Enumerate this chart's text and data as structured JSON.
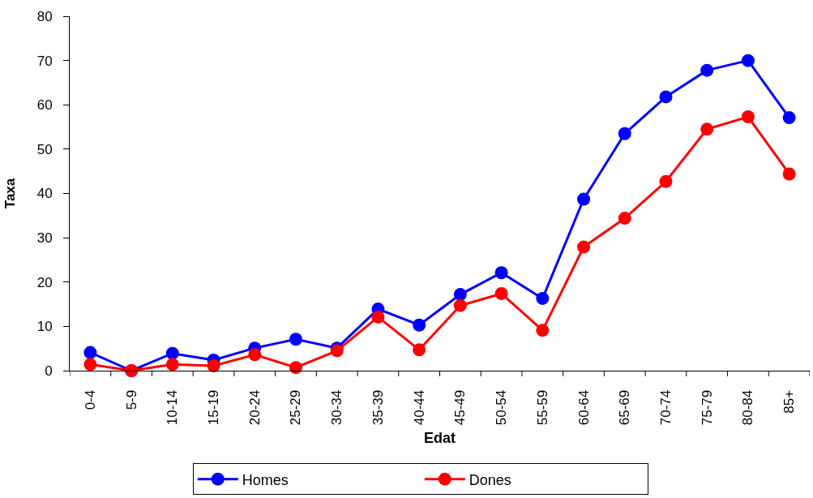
{
  "chart_data": {
    "type": "line",
    "xlabel": "Edat",
    "ylabel": "Taxa",
    "categories": [
      "0-4",
      "5-9",
      "10-14",
      "15-19",
      "20-24",
      "25-29",
      "30-34",
      "35-39",
      "40-44",
      "45-49",
      "50-54",
      "55-59",
      "60-64",
      "65-69",
      "70-74",
      "75-79",
      "80-84",
      "85+"
    ],
    "series": [
      {
        "name": "Homes",
        "color": "#0000ff",
        "values": [
          4.1,
          0,
          3.9,
          2.4,
          5.1,
          7.1,
          5.1,
          13.9,
          10.3,
          17.2,
          22.1,
          16.3,
          38.7,
          53.5,
          61.8,
          67.8,
          70.0,
          57.1
        ]
      },
      {
        "name": "Dones",
        "color": "#ff0000",
        "values": [
          1.4,
          0,
          1.4,
          1.1,
          3.6,
          0.7,
          4.5,
          12.1,
          4.7,
          14.7,
          17.4,
          9.1,
          27.9,
          34.4,
          42.7,
          54.5,
          57.3,
          44.4
        ]
      }
    ],
    "ylim": [
      0,
      80
    ],
    "yticks": [
      0,
      10,
      20,
      30,
      40,
      50,
      60,
      70,
      80
    ],
    "legend": "bottom",
    "marker": "circle",
    "line_style": "solid"
  }
}
